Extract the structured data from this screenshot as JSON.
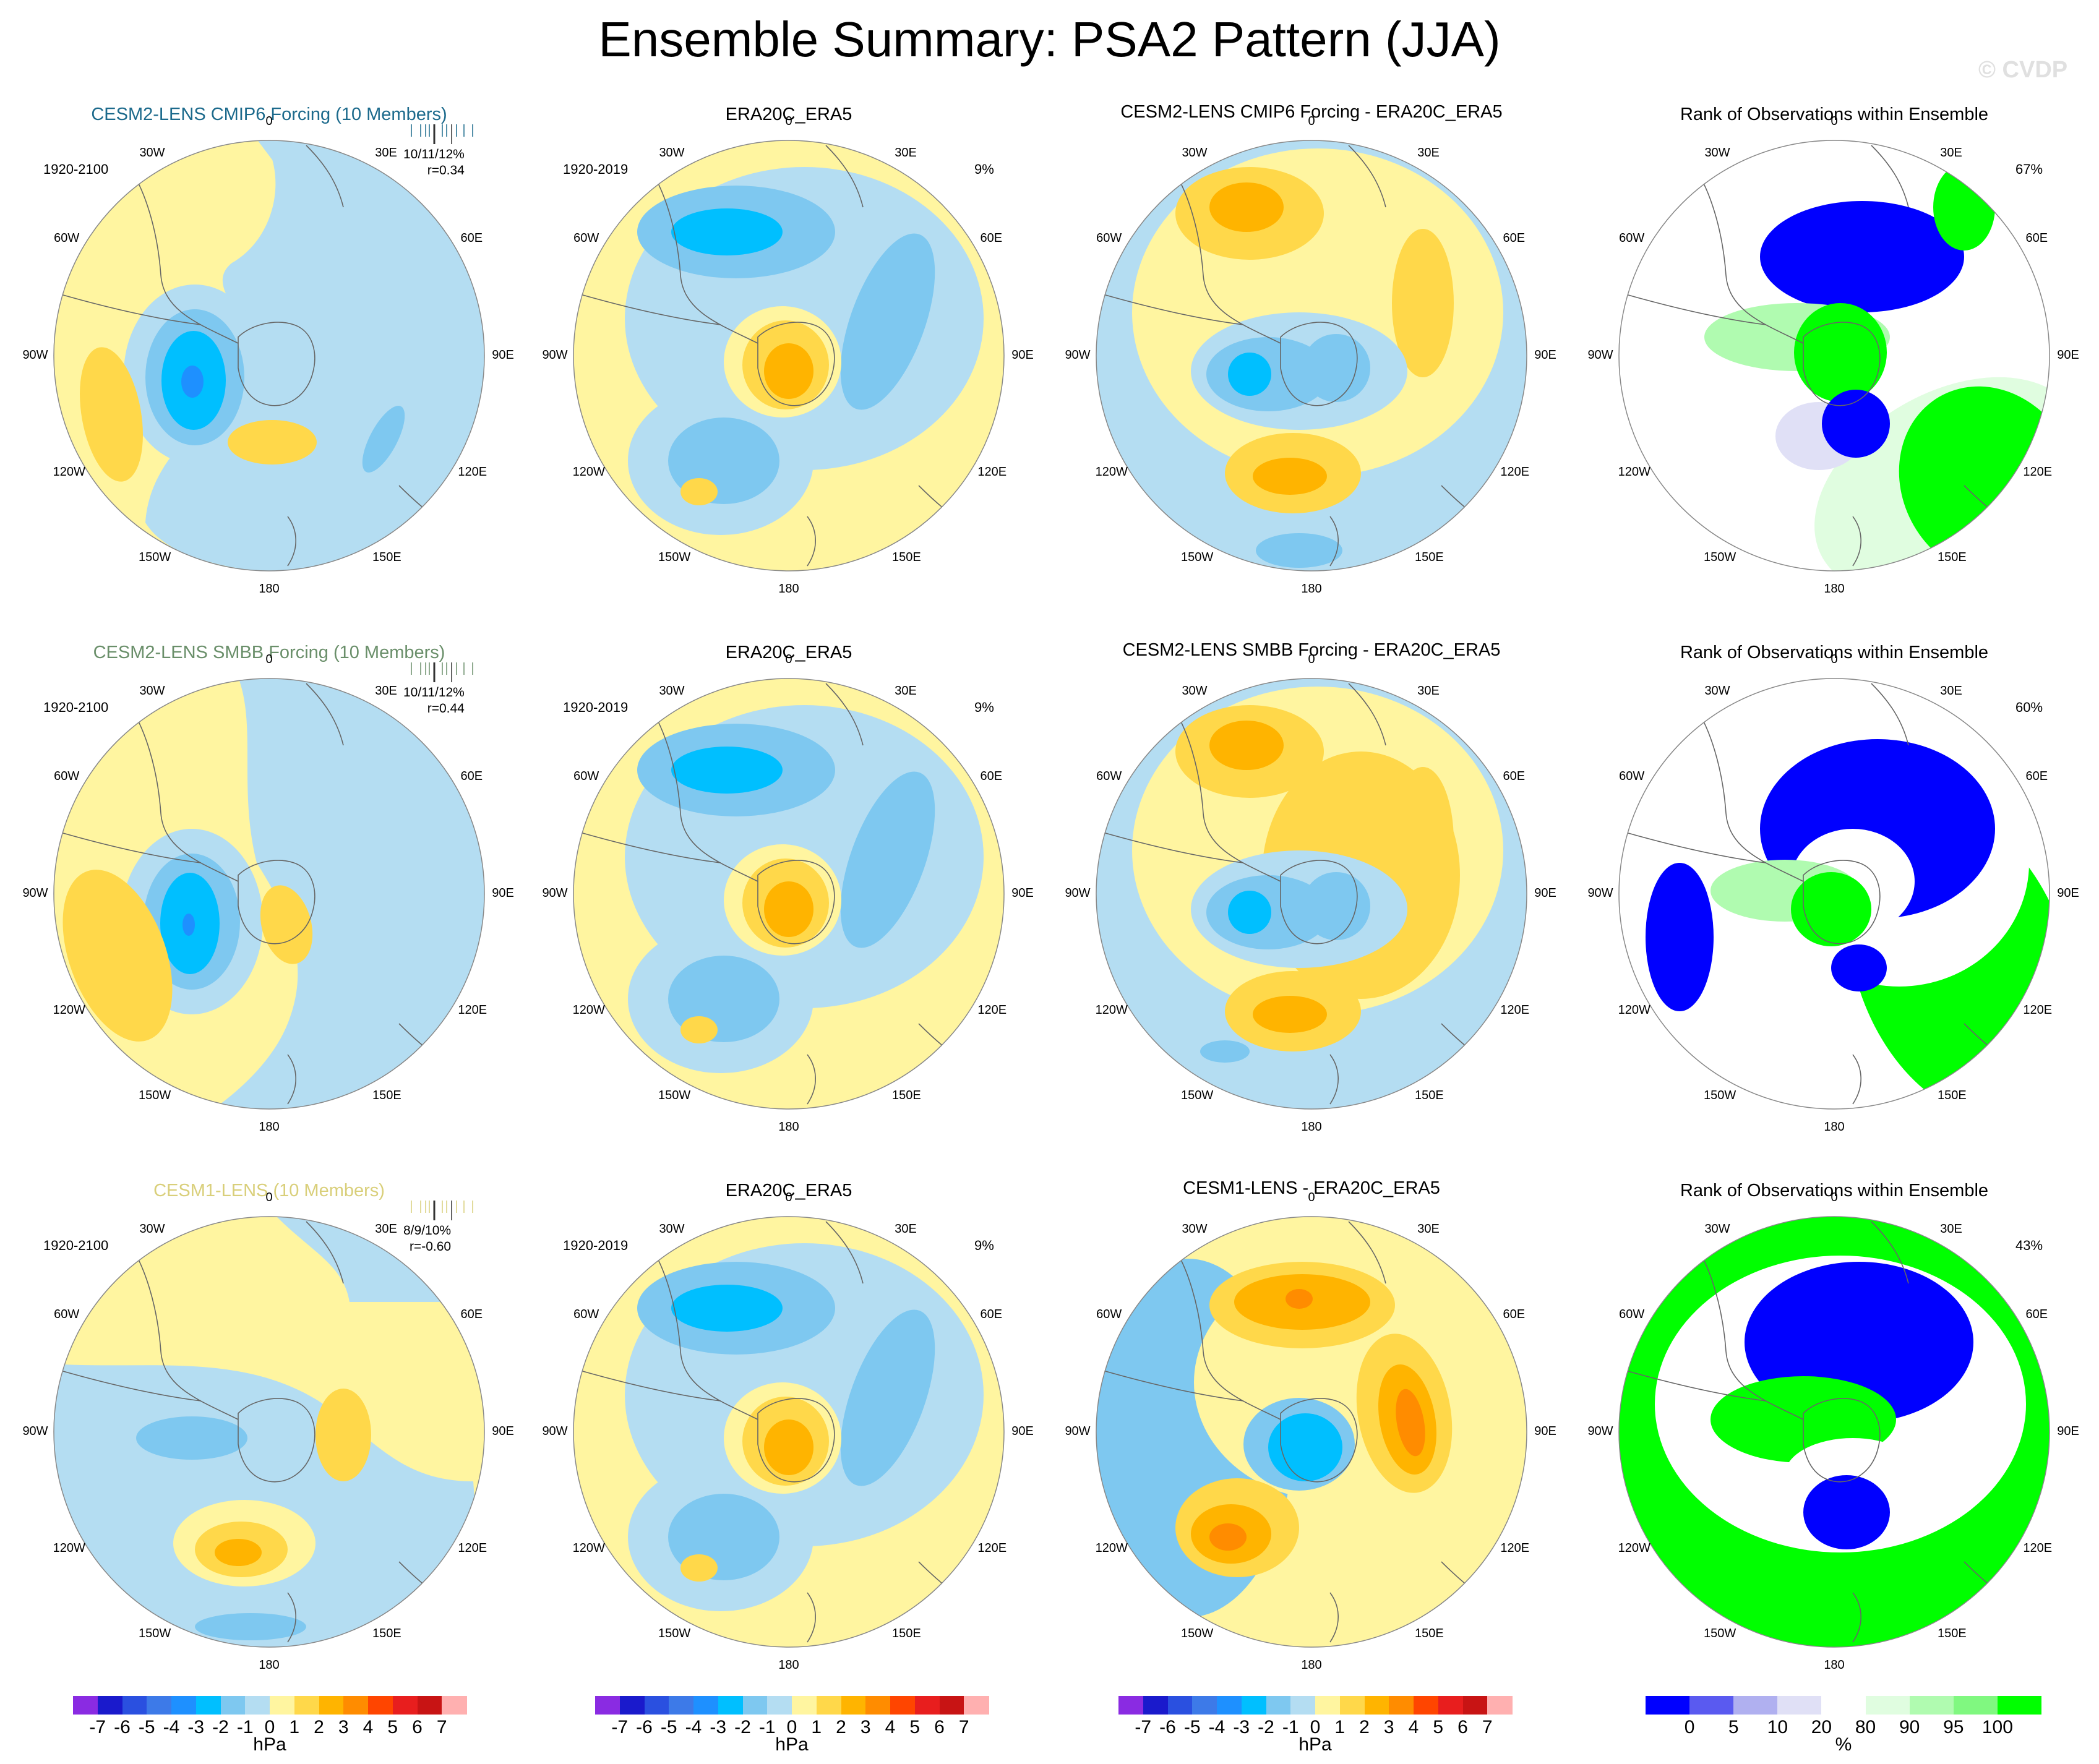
{
  "title": "Ensemble Summary: PSA2 Pattern (JJA)",
  "watermark": "© CVDP",
  "lon_labels": [
    "0",
    "30E",
    "60E",
    "90E",
    "120E",
    "150E",
    "180",
    "150W",
    "120W",
    "90W",
    "60W",
    "30W"
  ],
  "rows": [
    {
      "model_title": "CESM2-LENS CMIP6 Forcing (10 Members)",
      "model_title_color": "#1c6a8c",
      "model_period": "1920-2100",
      "model_stats": [
        "10/11/12%",
        "r=0.34"
      ],
      "obs_title": "ERA20C_ERA5",
      "obs_period": "1920-2019",
      "obs_pct": "9%",
      "diff_title": "CESM2-LENS CMIP6 Forcing - ERA20C_ERA5",
      "rank_title": "Rank of Observations within Ensemble",
      "rank_pct": "67%"
    },
    {
      "model_title": "CESM2-LENS SMBB Forcing (10 Members)",
      "model_title_color": "#6a8f6a",
      "model_period": "1920-2100",
      "model_stats": [
        "10/11/12%",
        "r=0.44"
      ],
      "obs_title": "ERA20C_ERA5",
      "obs_period": "1920-2019",
      "obs_pct": "9%",
      "diff_title": "CESM2-LENS SMBB Forcing - ERA20C_ERA5",
      "rank_title": "Rank of Observations within Ensemble",
      "rank_pct": "60%"
    },
    {
      "model_title": "CESM1-LENS (10 Members)",
      "model_title_color": "#d9cf7a",
      "model_period": "1920-2100",
      "model_stats": [
        "8/9/10%",
        "r=-0.60"
      ],
      "obs_title": "ERA20C_ERA5",
      "obs_period": "1920-2019",
      "obs_pct": "9%",
      "diff_title": "CESM1-LENS - ERA20C_ERA5",
      "rank_title": "Rank of Observations within Ensemble",
      "rank_pct": "43%"
    }
  ],
  "colorbar_hpa": {
    "labels": [
      "-7",
      "-6",
      "-5",
      "-4",
      "-3",
      "-2",
      "-1",
      "0",
      "1",
      "2",
      "3",
      "4",
      "5",
      "6",
      "7"
    ],
    "units": "hPa",
    "colors": [
      "#8a2be2",
      "#1a1acc",
      "#2a50e0",
      "#3d7ae8",
      "#1e90ff",
      "#00bfff",
      "#7ec8f0",
      "#b4ddf2",
      "#fff5a0",
      "#ffd84a",
      "#ffb400",
      "#ff8c00",
      "#ff4500",
      "#e81e1e",
      "#c81414",
      "#ffb0b0"
    ]
  },
  "colorbar_rank": {
    "labels": [
      "0",
      "5",
      "10",
      "20",
      "80",
      "90",
      "95",
      "100"
    ],
    "units": "%",
    "colors": [
      "#0000ff",
      "#5a5af0",
      "#b0b0f0",
      "#e0e0f6",
      "#ffffff",
      "#e0fde0",
      "#b0fbb0",
      "#80f880",
      "#00ff00"
    ]
  }
}
